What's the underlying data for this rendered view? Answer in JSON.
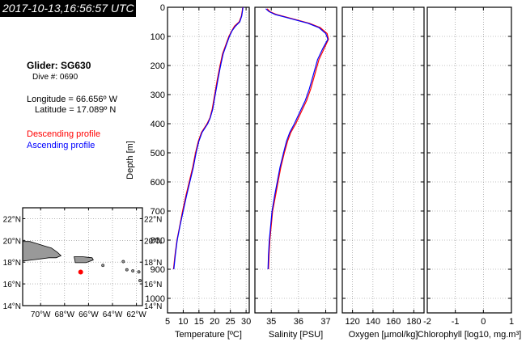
{
  "timestamp": "2017-10-13,16:56:57 UTC",
  "glider": {
    "title": "Glider: SG630",
    "dive": "Dive #: 0690",
    "longitude": "Longitude = 66.656º W",
    "latitude": "Latitude = 17.089º N"
  },
  "legend": {
    "descending": "Descending profile",
    "ascending": "Ascending profile",
    "descending_color": "#ff0000",
    "ascending_color": "#0000ff"
  },
  "chart_data": [
    {
      "type": "line",
      "panel": "temperature",
      "xlabel": "Temperature [ºC]",
      "ylabel": "Depth [m]",
      "xlim": [
        5,
        31
      ],
      "ylim": [
        1050,
        0
      ],
      "xticks": [
        5,
        10,
        15,
        20,
        25,
        30
      ],
      "yticks": [
        0,
        100,
        200,
        300,
        400,
        500,
        600,
        700,
        800,
        900,
        1000
      ],
      "grid": true,
      "series": [
        {
          "name": "Descending profile",
          "color": "#ff0000",
          "points": [
            [
              28.9,
              0
            ],
            [
              28.8,
              10
            ],
            [
              28.5,
              30
            ],
            [
              27.8,
              50
            ],
            [
              26.3,
              65
            ],
            [
              25.5,
              80
            ],
            [
              24.5,
              100
            ],
            [
              23.5,
              130
            ],
            [
              22.5,
              160
            ],
            [
              21.7,
              200
            ],
            [
              20.8,
              250
            ],
            [
              20.0,
              300
            ],
            [
              19.2,
              350
            ],
            [
              18.5,
              380
            ],
            [
              17.6,
              400
            ],
            [
              15.8,
              430
            ],
            [
              14.8,
              460
            ],
            [
              13.9,
              500
            ],
            [
              13.0,
              550
            ],
            [
              11.9,
              600
            ],
            [
              10.8,
              650
            ],
            [
              9.8,
              700
            ],
            [
              8.9,
              750
            ],
            [
              8.0,
              800
            ],
            [
              7.4,
              850
            ],
            [
              6.9,
              900
            ]
          ]
        },
        {
          "name": "Ascending profile",
          "color": "#0000ff",
          "points": [
            [
              29.0,
              0
            ],
            [
              28.9,
              10
            ],
            [
              28.6,
              30
            ],
            [
              28.0,
              50
            ],
            [
              26.6,
              65
            ],
            [
              25.6,
              80
            ],
            [
              24.7,
              100
            ],
            [
              23.7,
              130
            ],
            [
              22.7,
              160
            ],
            [
              21.9,
              200
            ],
            [
              21.0,
              250
            ],
            [
              20.2,
              300
            ],
            [
              19.4,
              350
            ],
            [
              18.6,
              380
            ],
            [
              17.8,
              400
            ],
            [
              16.0,
              430
            ],
            [
              15.0,
              460
            ],
            [
              14.1,
              500
            ],
            [
              13.2,
              550
            ],
            [
              12.1,
              600
            ],
            [
              11.0,
              650
            ],
            [
              10.0,
              700
            ],
            [
              9.0,
              750
            ],
            [
              8.1,
              800
            ],
            [
              7.5,
              850
            ],
            [
              7.0,
              900
            ]
          ]
        }
      ]
    },
    {
      "type": "line",
      "panel": "salinity",
      "xlabel": "Salinity [PSU]",
      "xlim": [
        34.4,
        37.4
      ],
      "ylim": [
        1050,
        0
      ],
      "xticks": [
        35,
        36,
        37
      ],
      "grid": true,
      "series": [
        {
          "name": "Descending profile",
          "color": "#ff0000",
          "points": [
            [
              34.85,
              5
            ],
            [
              34.95,
              15
            ],
            [
              35.2,
              25
            ],
            [
              35.6,
              35
            ],
            [
              36.0,
              45
            ],
            [
              36.4,
              55
            ],
            [
              36.8,
              70
            ],
            [
              37.05,
              90
            ],
            [
              37.1,
              110
            ],
            [
              36.95,
              140
            ],
            [
              36.75,
              180
            ],
            [
              36.6,
              230
            ],
            [
              36.45,
              280
            ],
            [
              36.3,
              320
            ],
            [
              36.1,
              360
            ],
            [
              35.9,
              400
            ],
            [
              35.72,
              430
            ],
            [
              35.6,
              460
            ],
            [
              35.48,
              500
            ],
            [
              35.35,
              550
            ],
            [
              35.25,
              600
            ],
            [
              35.15,
              650
            ],
            [
              35.05,
              700
            ],
            [
              35.0,
              750
            ],
            [
              34.95,
              800
            ],
            [
              34.92,
              850
            ],
            [
              34.9,
              900
            ]
          ]
        },
        {
          "name": "Ascending profile",
          "color": "#0000ff",
          "points": [
            [
              34.8,
              5
            ],
            [
              34.92,
              15
            ],
            [
              35.15,
              25
            ],
            [
              35.55,
              35
            ],
            [
              35.95,
              45
            ],
            [
              36.35,
              55
            ],
            [
              36.75,
              70
            ],
            [
              37.0,
              90
            ],
            [
              37.08,
              110
            ],
            [
              36.9,
              140
            ],
            [
              36.7,
              180
            ],
            [
              36.55,
              230
            ],
            [
              36.4,
              280
            ],
            [
              36.25,
              320
            ],
            [
              36.05,
              360
            ],
            [
              35.85,
              400
            ],
            [
              35.68,
              430
            ],
            [
              35.56,
              460
            ],
            [
              35.45,
              500
            ],
            [
              35.32,
              550
            ],
            [
              35.22,
              600
            ],
            [
              35.12,
              650
            ],
            [
              35.03,
              700
            ],
            [
              34.98,
              750
            ],
            [
              34.93,
              800
            ],
            [
              34.9,
              850
            ],
            [
              34.88,
              900
            ]
          ]
        }
      ]
    },
    {
      "type": "line",
      "panel": "oxygen",
      "xlabel": "Oxygen [µmol/kg]",
      "xlim": [
        110,
        190
      ],
      "ylim": [
        1050,
        0
      ],
      "xticks": [
        120,
        140,
        160,
        180
      ],
      "grid": true,
      "series": []
    },
    {
      "type": "line",
      "panel": "chlorophyll",
      "xlabel": "Chlorophyll [log10, mg.m³]",
      "xlim": [
        -2,
        1
      ],
      "ylim": [
        1050,
        0
      ],
      "xticks": [
        -2,
        -1,
        0,
        1
      ],
      "grid": true,
      "series": []
    }
  ],
  "map": {
    "lat_ticks": [
      "22°N",
      "20°N",
      "18°N",
      "16°N",
      "14°N"
    ],
    "lon_ticks": [
      "70°W",
      "68°W",
      "66°W",
      "64°W",
      "62°W"
    ],
    "lat_values": [
      22,
      20,
      18,
      16,
      14
    ],
    "lon_values": [
      -70,
      -68,
      -66,
      -64,
      -62
    ],
    "lat_range": [
      14,
      23
    ],
    "lon_range": [
      -71.5,
      -61.5
    ],
    "glider_position": {
      "lon": -66.656,
      "lat": 17.089
    },
    "land_color": "#999999",
    "marker_color": "#ff0000"
  }
}
